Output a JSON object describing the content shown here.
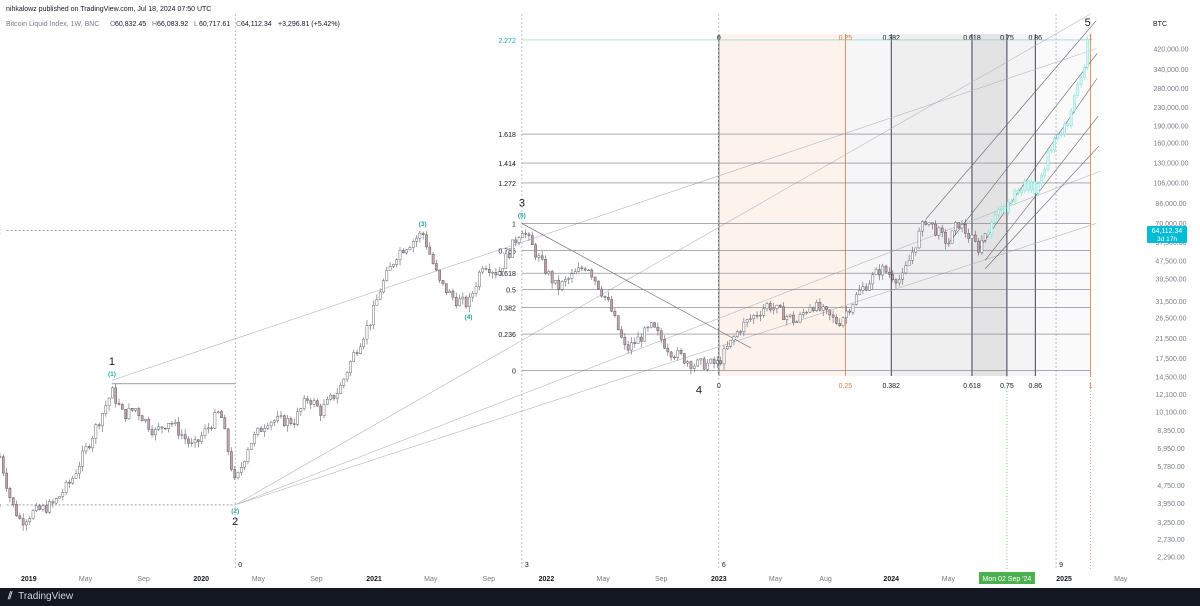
{
  "header": {
    "publisher": "nihkalowz published on TradingView.com, Jul 18, 2024 07:50 UTC",
    "symbol": "Bitcoin Liquid Index, 1W, BNC",
    "ohlc": {
      "o": "60,832.45",
      "h": "66,083.92",
      "l": "60,717.61",
      "c": "64,112.34",
      "change": "+3,296.81 (+5.42%)"
    },
    "currency": "BTC"
  },
  "price_label": {
    "value": "64,112.34",
    "countdown": "3d 17h"
  },
  "date_label": "Mon 02 Sep '24",
  "footer": {
    "brand": "TradingView"
  },
  "colors": {
    "up_candle": "#ffffff",
    "down_candle": "#ffffff",
    "wick": "#5d606b",
    "accent_teal": "#26a69a",
    "fib_orange": "#e07a3e",
    "price_badge": "#00bcd4",
    "date_badge": "#4caf50",
    "projection": "#7fe0d8"
  },
  "chart_data": {
    "type": "candlestick",
    "scale": "log",
    "ylim": [
      2000,
      600000
    ],
    "xlim": [
      "2018-11-01",
      "2025-06-15"
    ],
    "y_ticks": [
      "420,000.00",
      "340,000.00",
      "280,000.00",
      "230,000.00",
      "190,000.00",
      "160,000.00",
      "130,000.00",
      "106,000.00",
      "86,000.00",
      "70,000.00",
      "57,500.00",
      "47,500.00",
      "39,500.00",
      "31,500.00",
      "26,500.00",
      "21,500.00",
      "17,500.00",
      "14,500.00",
      "12,100.00",
      "10,100.00",
      "8,350.00",
      "6,950.00",
      "5,780.00",
      "4,750.00",
      "3,950.00",
      "3,250.00",
      "2,730.00",
      "2,290.00"
    ],
    "x_ticks": [
      {
        "label": "2019",
        "date": "2019-01-01",
        "bold": true
      },
      {
        "label": "May",
        "date": "2019-05-01"
      },
      {
        "label": "Sep",
        "date": "2019-09-01"
      },
      {
        "label": "2020",
        "date": "2020-01-01",
        "bold": true
      },
      {
        "label": "May",
        "date": "2020-05-01"
      },
      {
        "label": "Sep",
        "date": "2020-09-01"
      },
      {
        "label": "2021",
        "date": "2021-01-01",
        "bold": true
      },
      {
        "label": "May",
        "date": "2021-05-01"
      },
      {
        "label": "Sep",
        "date": "2021-09-01"
      },
      {
        "label": "2022",
        "date": "2022-01-01",
        "bold": true
      },
      {
        "label": "May",
        "date": "2022-05-01"
      },
      {
        "label": "Sep",
        "date": "2022-09-01"
      },
      {
        "label": "2023",
        "date": "2023-01-01",
        "bold": true
      },
      {
        "label": "May",
        "date": "2023-05-01"
      },
      {
        "label": "Aug",
        "date": "2023-08-15"
      },
      {
        "label": "2024",
        "date": "2024-01-01",
        "bold": true
      },
      {
        "label": "May",
        "date": "2024-05-01"
      },
      {
        "label": "2025",
        "date": "2025-01-01",
        "bold": true
      },
      {
        "label": "May",
        "date": "2025-05-01"
      }
    ],
    "price_path": [
      [
        "2018-11-01",
        6400
      ],
      [
        "2018-11-25",
        4000
      ],
      [
        "2018-12-15",
        3300
      ],
      [
        "2019-01-10",
        3600
      ],
      [
        "2019-02-20",
        3900
      ],
      [
        "2019-04-01",
        5000
      ],
      [
        "2019-05-10",
        7500
      ],
      [
        "2019-06-26",
        12500
      ],
      [
        "2019-07-20",
        9800
      ],
      [
        "2019-08-15",
        10500
      ],
      [
        "2019-09-25",
        8200
      ],
      [
        "2019-10-26",
        9300
      ],
      [
        "2019-12-15",
        7000
      ],
      [
        "2020-02-10",
        10200
      ],
      [
        "2020-03-13",
        4800
      ],
      [
        "2020-04-10",
        7200
      ],
      [
        "2020-05-20",
        9300
      ],
      [
        "2020-07-15",
        9200
      ],
      [
        "2020-08-15",
        11800
      ],
      [
        "2020-09-10",
        10200
      ],
      [
        "2020-10-20",
        12800
      ],
      [
        "2020-11-20",
        18500
      ],
      [
        "2020-12-25",
        26000
      ],
      [
        "2021-01-15",
        36000
      ],
      [
        "2021-02-20",
        52000
      ],
      [
        "2021-04-14",
        63500
      ],
      [
        "2021-05-20",
        38000
      ],
      [
        "2021-06-22",
        32000
      ],
      [
        "2021-07-20",
        30500
      ],
      [
        "2021-08-20",
        47000
      ],
      [
        "2021-09-20",
        42000
      ],
      [
        "2021-11-10",
        67000
      ],
      [
        "2021-12-20",
        47000
      ],
      [
        "2022-01-24",
        36000
      ],
      [
        "2022-03-28",
        46000
      ],
      [
        "2022-05-15",
        30000
      ],
      [
        "2022-06-18",
        19000
      ],
      [
        "2022-08-12",
        24200
      ],
      [
        "2022-09-20",
        19000
      ],
      [
        "2022-11-10",
        16500
      ],
      [
        "2022-12-30",
        16600
      ],
      [
        "2023-02-15",
        24000
      ],
      [
        "2023-04-14",
        30500
      ],
      [
        "2023-06-15",
        25500
      ],
      [
        "2023-07-15",
        30800
      ],
      [
        "2023-09-11",
        25200
      ],
      [
        "2023-10-25",
        34500
      ],
      [
        "2023-12-10",
        44000
      ],
      [
        "2024-01-23",
        39000
      ],
      [
        "2024-02-28",
        62000
      ],
      [
        "2024-03-14",
        73000
      ],
      [
        "2024-05-01",
        57000
      ],
      [
        "2024-05-21",
        71000
      ],
      [
        "2024-07-05",
        54000
      ],
      [
        "2024-07-18",
        64112
      ]
    ],
    "projection_path": [
      [
        "2024-07-18",
        64112
      ],
      [
        "2024-09-01",
        85000
      ],
      [
        "2024-10-01",
        105000
      ],
      [
        "2024-11-01",
        100000
      ],
      [
        "2024-12-01",
        150000
      ],
      [
        "2025-01-01",
        180000
      ],
      [
        "2025-02-01",
        280000
      ],
      [
        "2025-02-20",
        440000
      ]
    ],
    "wave_labels": [
      {
        "text": "1",
        "sub": "(1)",
        "date": "2019-06-26",
        "price": 14200,
        "pos": "above"
      },
      {
        "text": "2",
        "sub": "(2)",
        "date": "2020-03-13",
        "price": 3900,
        "pos": "below"
      },
      {
        "text": "",
        "sub": "(3)",
        "date": "2021-04-14",
        "price": 66000,
        "pos": "above"
      },
      {
        "text": "",
        "sub": "(4)",
        "date": "2021-07-20",
        "price": 28500,
        "pos": "below"
      },
      {
        "text": "3",
        "sub": "(5)",
        "date": "2021-11-10",
        "price": 72000,
        "pos": "above"
      },
      {
        "text": "4",
        "sub": "",
        "date": "2022-11-20",
        "price": 15000,
        "pos": "below"
      },
      {
        "text": "5",
        "sub": "",
        "date": "2025-02-20",
        "price": 460000,
        "pos": "above"
      }
    ],
    "fib_ext_1": {
      "levels": [
        {
          "label": "2.272",
          "price": 65000
        },
        {
          "label": "0",
          "price": 3900
        }
      ],
      "start": "2018-11-15",
      "end": "2020-03-13"
    },
    "fib_retracement": [
      {
        "label": "1",
        "price": 70000
      },
      {
        "label": "0.786",
        "price": 53000
      },
      {
        "label": "0.618",
        "price": 42000
      },
      {
        "label": "0.5",
        "price": 35500
      },
      {
        "label": "0.382",
        "price": 29500
      },
      {
        "label": "0.236",
        "price": 22500
      },
      {
        "label": "0",
        "price": 15500
      }
    ],
    "fib_ext_2": [
      {
        "label": "2.272",
        "price": 460000,
        "teal": true
      },
      {
        "label": "1.618",
        "price": 175000
      },
      {
        "label": "1.414",
        "price": 130000
      },
      {
        "label": "1.272",
        "price": 106000
      }
    ],
    "time_zones": [
      {
        "label": "0",
        "date": "2023-01-01",
        "color": "#131722"
      },
      {
        "label": "0.25",
        "date": "2023-09-26",
        "color": "#e07a3e"
      },
      {
        "label": "0.382",
        "date": "2024-01-01",
        "color": "#131722"
      },
      {
        "label": "0.618",
        "date": "2024-06-20",
        "color": "#131722"
      },
      {
        "label": "0.75",
        "date": "2024-09-02",
        "color": "#131722"
      },
      {
        "label": "0.86",
        "date": "2024-11-01",
        "color": "#131722"
      },
      {
        "label": "1",
        "date": "2025-02-26",
        "color": "#e07a3e"
      }
    ],
    "cycle_markers": [
      {
        "label": "0",
        "date": "2020-03-13"
      },
      {
        "label": "3",
        "date": "2021-11-10"
      },
      {
        "label": "6",
        "date": "2023-01-01"
      },
      {
        "label": "9",
        "date": "2024-12-15"
      }
    ]
  }
}
